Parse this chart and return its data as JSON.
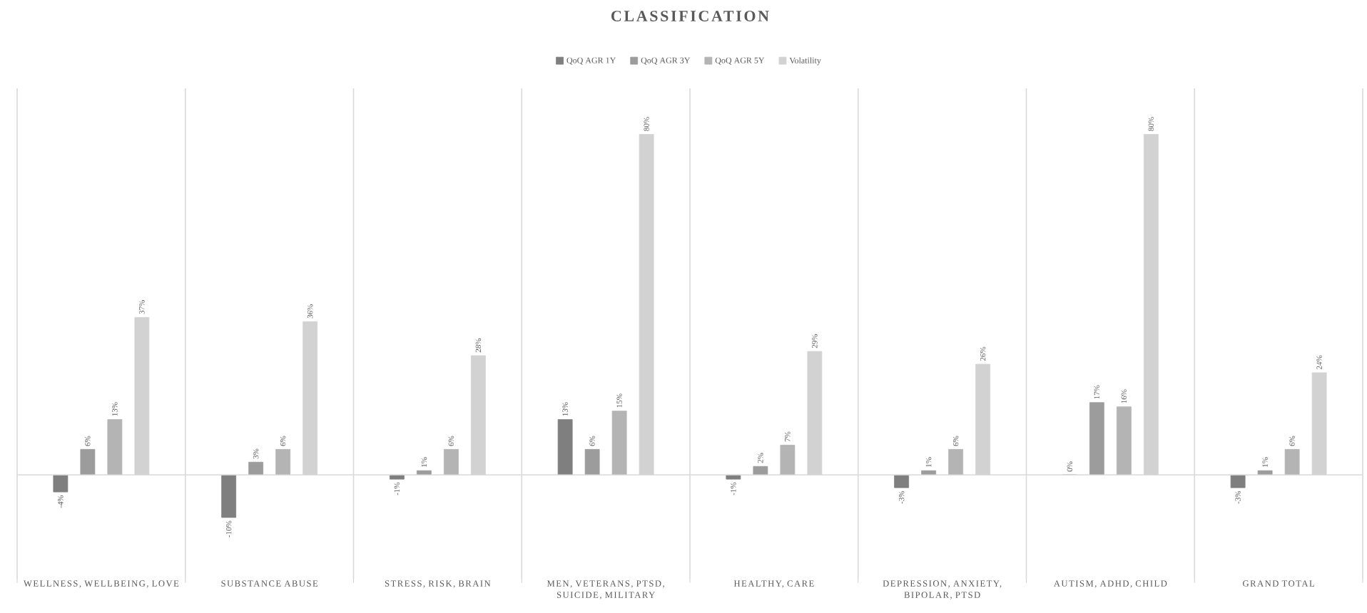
{
  "chart_data": {
    "type": "bar",
    "title": "CLASSIFICATION",
    "categories": [
      "WELLNESS, WELLBEING, LOVE",
      "SUBSTANCE ABUSE",
      "STRESS, RISK, BRAIN",
      "MEN, VETERANS, PTSD, SUICIDE, MILITARY",
      "HEALTHY, CARE",
      "DEPRESSION, ANXIETY, BIPOLAR, PTSD",
      "AUTISM, ADHD, CHILD",
      "GRAND TOTAL"
    ],
    "series": [
      {
        "name": "QoQ AGR 1Y",
        "color": "#7f7f7f",
        "values": [
          -4,
          -10,
          -1,
          13,
          -1,
          -3,
          0,
          -3
        ],
        "value_labels": [
          "-4%",
          "-10%",
          "-1%",
          "13%",
          "-1%",
          "-3%",
          "0%",
          "-3%"
        ]
      },
      {
        "name": "QoQ AGR 3Y",
        "color": "#9c9c9c",
        "values": [
          6,
          3,
          1,
          6,
          2,
          1,
          17,
          1
        ],
        "value_labels": [
          "6%",
          "3%",
          "1%",
          "6%",
          "2%",
          "1%",
          "17%",
          "1%"
        ]
      },
      {
        "name": "QoQ AGR 5Y",
        "color": "#b4b4b4",
        "values": [
          13,
          6,
          6,
          15,
          7,
          6,
          16,
          6
        ],
        "value_labels": [
          "13%",
          "6%",
          "6%",
          "15%",
          "7%",
          "6%",
          "16%",
          "6%"
        ]
      },
      {
        "name": "Volatility",
        "color": "#d2d2d2",
        "values": [
          37,
          36,
          28,
          80,
          29,
          26,
          80,
          24
        ],
        "value_labels": [
          "37%",
          "36%",
          "28%",
          "80%",
          "29%",
          "26%",
          "80%",
          "24%"
        ]
      }
    ],
    "grid": "x",
    "legend": "top"
  }
}
